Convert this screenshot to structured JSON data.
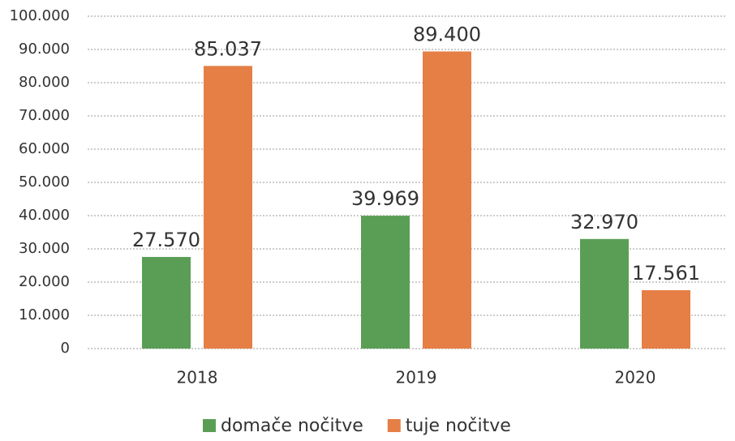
{
  "chart_data": {
    "type": "bar",
    "categories": [
      "2018",
      "2019",
      "2020"
    ],
    "series": [
      {
        "name": "domače nočitve",
        "color": "#5a9e55",
        "values": [
          27570,
          39969,
          32970
        ],
        "value_labels": [
          "27.570",
          "39.969",
          "32.970"
        ]
      },
      {
        "name": "tuje nočitve",
        "color": "#e57f45",
        "values": [
          85037,
          89400,
          17561
        ],
        "value_labels": [
          "85.037",
          "89.400",
          "17.561"
        ]
      }
    ],
    "ylim": [
      0,
      100000
    ],
    "yticks": [
      0,
      {
        "value": 10000,
        "label": "10.000"
      },
      {
        "value": 20000,
        "label": "20.000"
      },
      {
        "value": 30000,
        "label": "30.000"
      },
      {
        "value": 40000,
        "label": "40.000"
      },
      {
        "value": 50000,
        "label": "50.000"
      },
      {
        "value": 60000,
        "label": "60.000"
      },
      {
        "value": 70000,
        "label": "70.000"
      },
      {
        "value": 80000,
        "label": "80.000"
      },
      {
        "value": 90000,
        "label": "90.000"
      },
      {
        "value": 100000,
        "label": "100.000"
      }
    ],
    "grid": true,
    "legend": "bottom"
  }
}
